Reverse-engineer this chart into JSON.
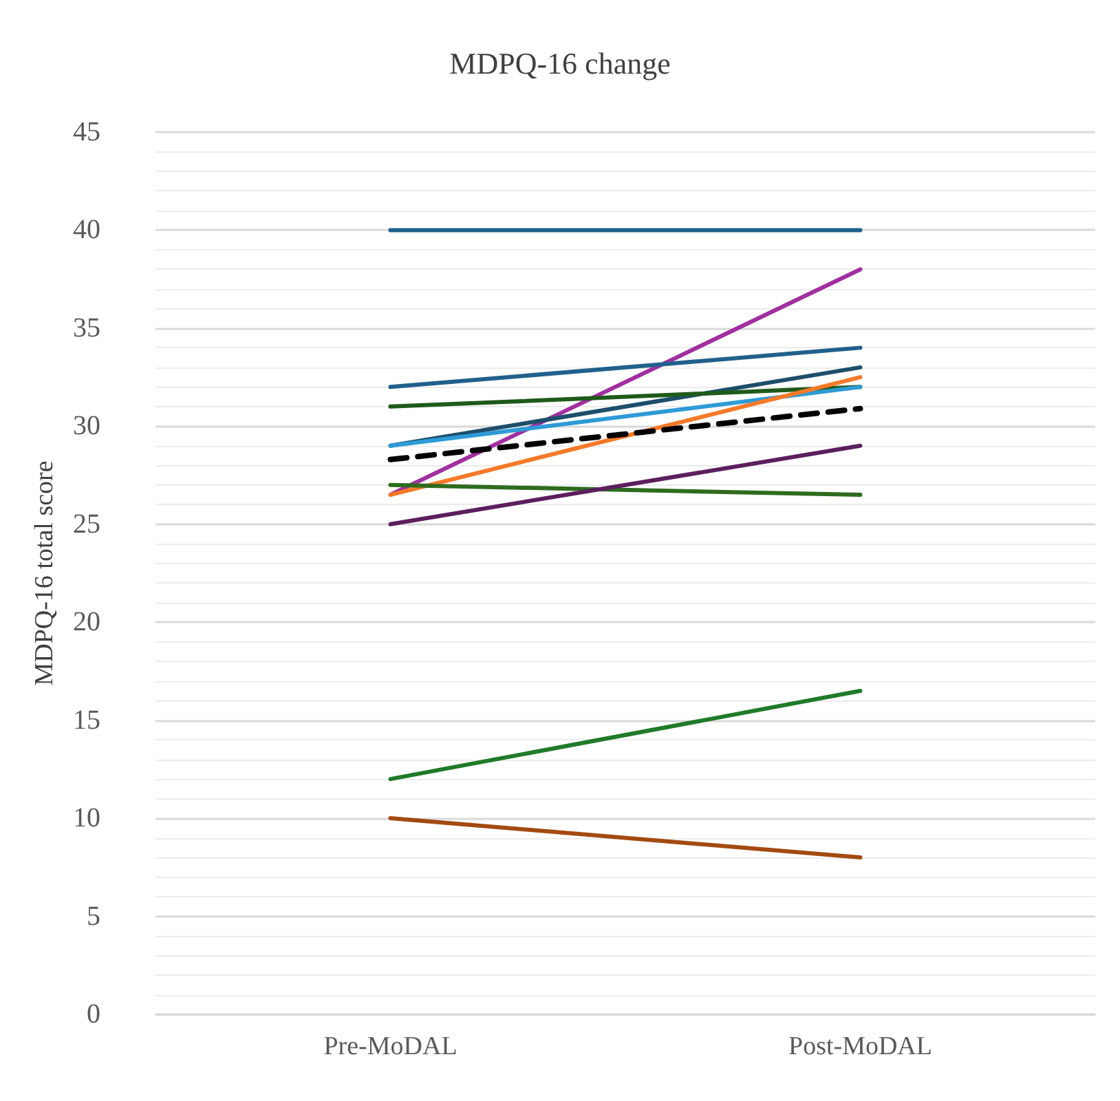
{
  "chart_data": {
    "type": "line",
    "title": "MDPQ-16 change",
    "ylabel": "MDPQ-16 total score",
    "categories": [
      "Pre-MoDAL",
      "Post-MoDAL"
    ],
    "series": [
      {
        "color": "#1f5f8b",
        "values": [
          40,
          40
        ]
      },
      {
        "color": "#a0309f",
        "values": [
          26.5,
          38
        ]
      },
      {
        "color": "#21608c",
        "values": [
          32,
          34
        ]
      },
      {
        "color": "#1d4e6b",
        "values": [
          29,
          33
        ]
      },
      {
        "color": "#1f5a1a",
        "values": [
          31,
          32
        ]
      },
      {
        "color": "#2e9bd6",
        "values": [
          29,
          32
        ]
      },
      {
        "color": "#f47a2a",
        "values": [
          26.5,
          32.5
        ]
      },
      {
        "color": "#000000",
        "values": [
          28.3,
          30.9
        ],
        "line_style": "dashed"
      },
      {
        "color": "#2e6b1e",
        "values": [
          27,
          26.5
        ]
      },
      {
        "color": "#5c1f5e",
        "values": [
          25,
          29
        ]
      },
      {
        "color": "#217a2a",
        "values": [
          12,
          16.5
        ]
      },
      {
        "color": "#a34a12",
        "values": [
          10,
          8
        ]
      }
    ],
    "ylim": [
      0,
      45
    ],
    "yticks": [
      0,
      5,
      10,
      15,
      20,
      25,
      30,
      35,
      40,
      45
    ],
    "grid": "y",
    "marker": "none"
  }
}
